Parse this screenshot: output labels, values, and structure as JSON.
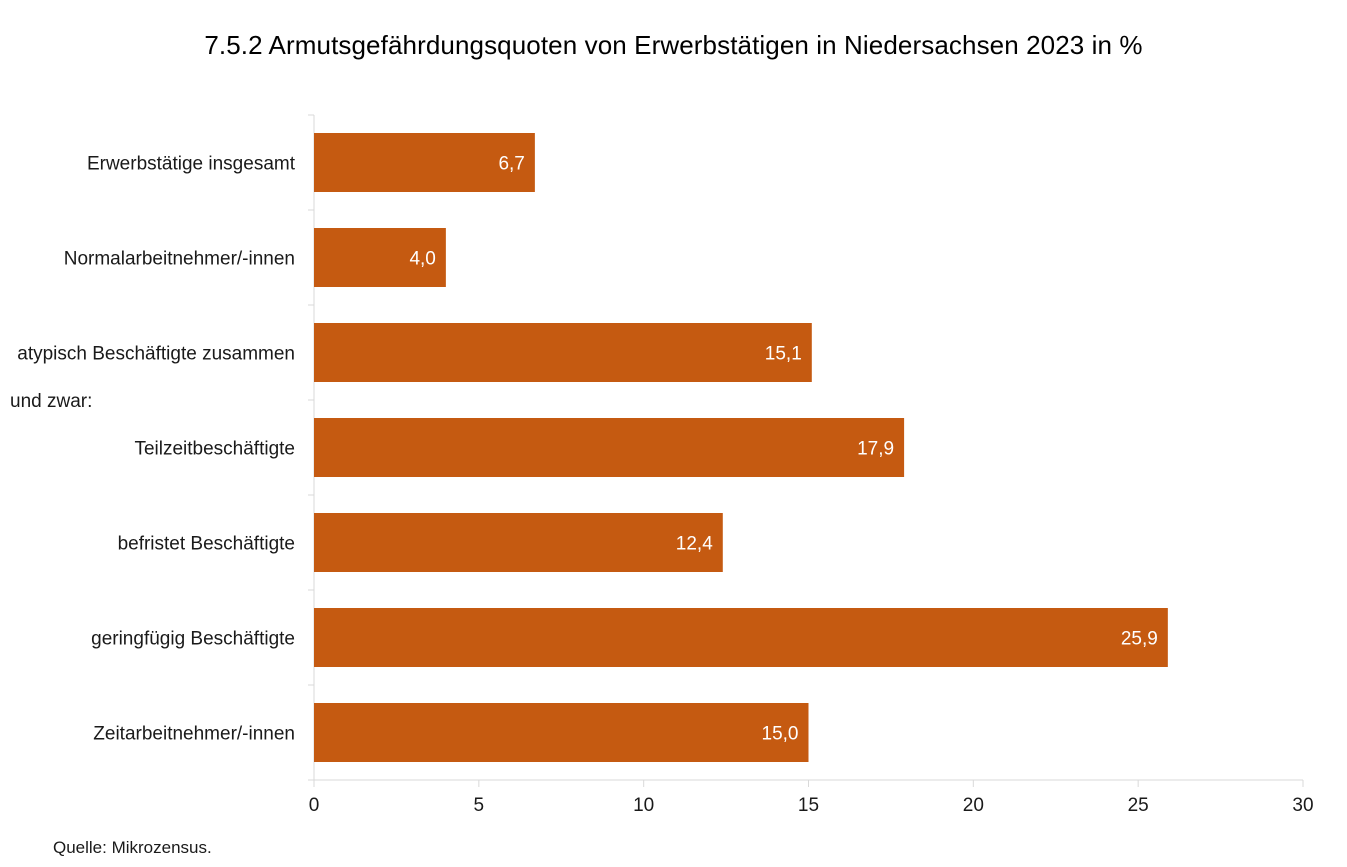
{
  "chart_data": {
    "type": "bar",
    "orientation": "horizontal",
    "title": "7.5.2 Armutsgefährdungsquoten von Erwerbstätigen in Niedersachsen 2023 in %",
    "categories": [
      "Erwerbstätige insgesamt",
      "Normalarbeitnehmer/-innen",
      "atypisch Beschäftigte zusammen",
      "Teilzeitbeschäftigte",
      "befristet Beschäftigte",
      "geringfügig Beschäftigte",
      "Zeitarbeitnehmer/-innen"
    ],
    "values": [
      6.7,
      4.0,
      15.1,
      17.9,
      12.4,
      25.9,
      15.0
    ],
    "value_labels": [
      "6,7",
      "4,0",
      "15,1",
      "17,9",
      "12,4",
      "25,9",
      "15,0"
    ],
    "group_note": "und zwar:",
    "xlim": [
      0,
      30
    ],
    "xticks": [
      0,
      5,
      10,
      15,
      20,
      25,
      30
    ],
    "xlabel": "",
    "ylabel": "",
    "grid": false,
    "bar_color": "#c55a11"
  },
  "source": "Quelle: Mikrozensus."
}
